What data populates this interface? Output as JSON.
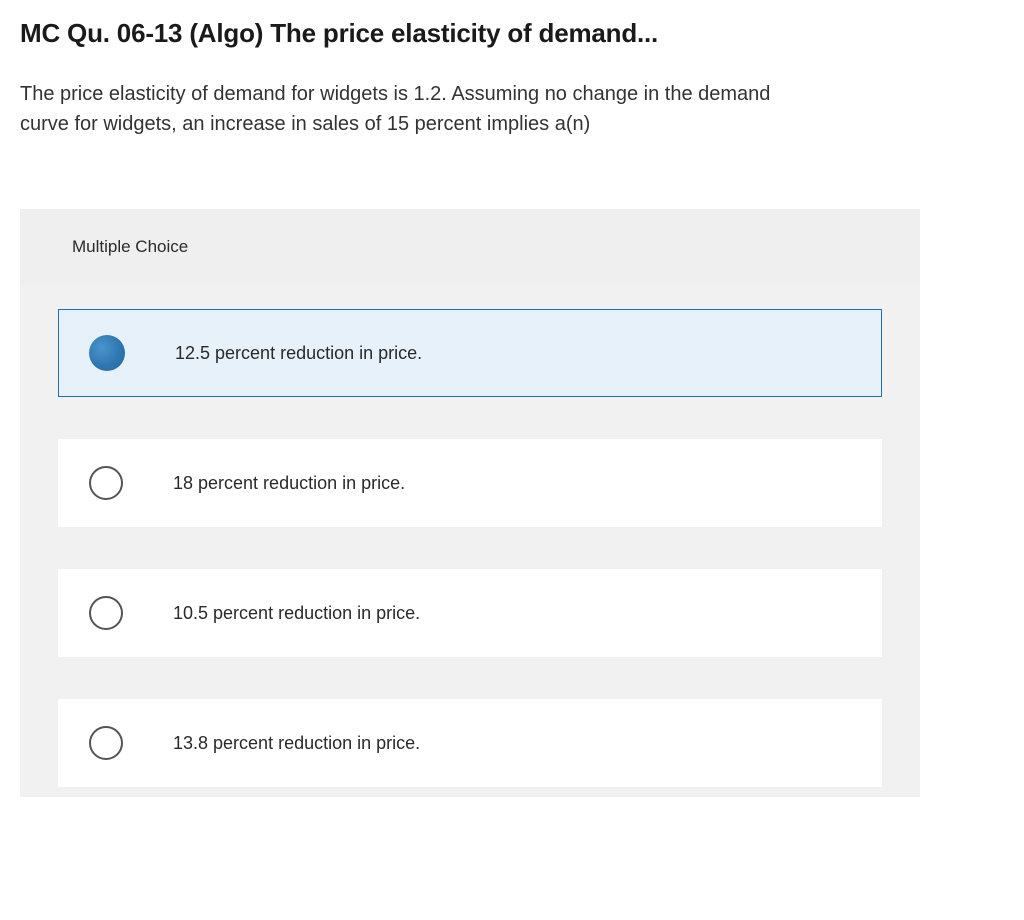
{
  "question": {
    "title": "MC Qu. 06-13 (Algo) The price elasticity of demand...",
    "body": "The price elasticity of demand for widgets is 1.2. Assuming no change in the demand curve for widgets, an increase in sales of 15 percent implies a(n)"
  },
  "mc": {
    "header": "Multiple Choice",
    "options": [
      {
        "label": "12.5 percent reduction in price.",
        "selected": true
      },
      {
        "label": "18 percent reduction in price.",
        "selected": false
      },
      {
        "label": "10.5 percent reduction in price.",
        "selected": false
      },
      {
        "label": "13.8 percent reduction in price.",
        "selected": false
      }
    ]
  },
  "colors": {
    "selected_bg": "#e7f1fa",
    "selected_border": "#1e6fb0",
    "radio_fill": "#3079b3",
    "container_bg": "#f1f1f1"
  }
}
